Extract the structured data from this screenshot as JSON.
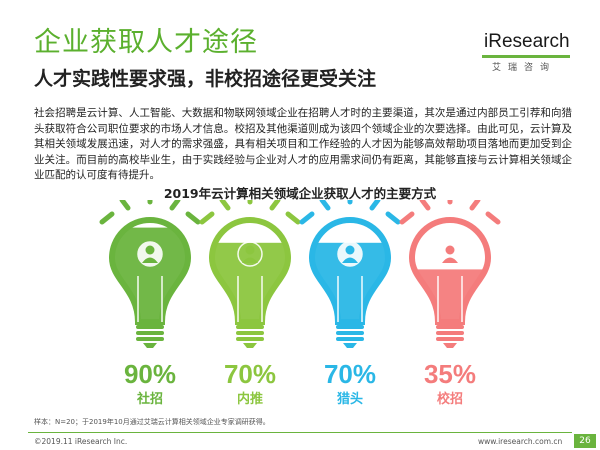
{
  "header": {
    "title": "企业获取人才途径",
    "subtitle": "人才实践性要求强，非校招途径更受关注"
  },
  "logo": {
    "name": "iResearch",
    "cn": "艾瑞咨询",
    "accent": "#6ab43e"
  },
  "body_text": "社会招聘是云计算、人工智能、大数据和物联网领域企业在招聘人才时的主要渠道，其次是通过内部员工引荐和向猎头获取符合公司职位要求的市场人才信息。校招及其他渠道则成为该四个领域企业的次要选择。由此可见，云计算及其相关领域发展迅速，对人才的需求强盛，具有相关项目和工作经验的人才因为能够高效帮助项目落地而更加受到企业关注。而目前的高校毕业生，由于实践经验与企业对人才的应用需求间仍有距离，其能够直接与云计算相关领域企业匹配的认可度有待提升。",
  "chart_data": {
    "type": "bar",
    "title": "2019年云计算相关领域企业获取人才的主要方式",
    "categories": [
      "社招",
      "内推",
      "猎头",
      "校招"
    ],
    "values": [
      90,
      70,
      70,
      35
    ],
    "value_labels": [
      "90%",
      "70%",
      "70%",
      "35%"
    ],
    "ylim": [
      0,
      100
    ],
    "colors": [
      "#6ab43e",
      "#8cc63f",
      "#2ab7e6",
      "#f47c7c"
    ],
    "icons": [
      "person-icon",
      "handshake-people-icon",
      "magnifier-person-icon",
      "graduate-icon"
    ]
  },
  "footer": {
    "note": "样本：N=20；于2019年10月通过艾瑞云计算相关领域企业专家调研获得。",
    "copyright": "©2019.11 iResearch Inc.",
    "website": "www.iresearch.com.cn",
    "page": "26"
  }
}
